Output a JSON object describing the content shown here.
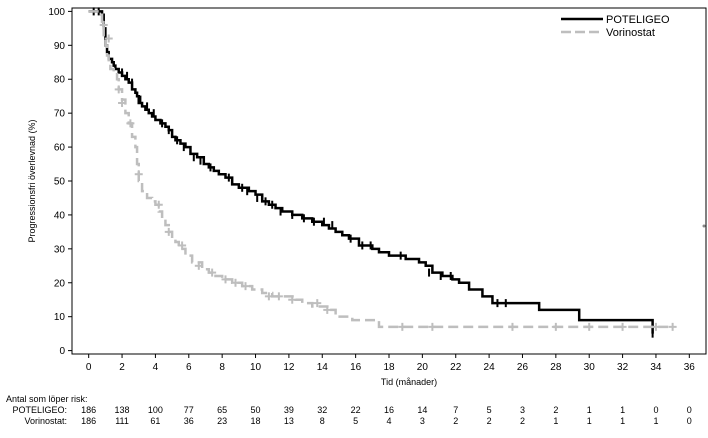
{
  "chart_data": {
    "type": "line",
    "xlabel": "Tid (månader)",
    "ylabel": "Progressionsfri överlevnad (%)",
    "xlim": [
      -1,
      37
    ],
    "ylim": [
      -1,
      101
    ],
    "x_ticks": [
      0,
      2,
      4,
      6,
      8,
      10,
      12,
      14,
      16,
      18,
      20,
      22,
      24,
      26,
      28,
      30,
      32,
      34,
      36
    ],
    "y_ticks": [
      0,
      10,
      20,
      30,
      40,
      50,
      60,
      70,
      80,
      90,
      100
    ],
    "legend_position": "top-right",
    "grid": false,
    "series": [
      {
        "name": "POTELIGEO",
        "color": "#000000",
        "dash": "solid",
        "x": [
          0,
          0.8,
          0.9,
          1.0,
          1.1,
          1.2,
          1.4,
          1.5,
          1.6,
          1.8,
          2.0,
          2.2,
          2.4,
          2.6,
          2.8,
          2.9,
          3.0,
          3.2,
          3.4,
          3.6,
          3.8,
          4.0,
          4.3,
          4.6,
          4.8,
          5.0,
          5.2,
          5.5,
          5.8,
          6.1,
          6.5,
          6.9,
          7.2,
          7.5,
          7.8,
          8.2,
          8.6,
          9.0,
          9.6,
          10.0,
          10.4,
          10.8,
          11.2,
          11.6,
          12.2,
          12.8,
          13.4,
          14.0,
          14.4,
          14.8,
          15.2,
          15.6,
          16.2,
          17.0,
          17.4,
          18.0,
          19.0,
          19.8,
          20.2,
          20.6,
          21.2,
          21.8,
          22.2,
          22.8,
          23.6,
          24.2,
          25.0,
          27.0,
          29.4,
          33.8
        ],
        "y": [
          100,
          99,
          95,
          90,
          88,
          86,
          85,
          84,
          83,
          82,
          81,
          80,
          79,
          77,
          76,
          75,
          73,
          72,
          71,
          70,
          69,
          68,
          67,
          66,
          65,
          63,
          62,
          61,
          60,
          58,
          57,
          55,
          54,
          53,
          52,
          51,
          49,
          48,
          47,
          46,
          44,
          43,
          42,
          41,
          40,
          39,
          38,
          37,
          36,
          35,
          34,
          33,
          31,
          30,
          29,
          28,
          27,
          26,
          25,
          23,
          22,
          21,
          20,
          18,
          16,
          14,
          14,
          12,
          9,
          5
        ],
        "censor_x": [
          0.3,
          0.6,
          2.0,
          2.3,
          2.6,
          3.1,
          3.5,
          3.9,
          4.4,
          4.8,
          5.3,
          5.7,
          6.3,
          6.7,
          7.3,
          8.4,
          9.2,
          9.5,
          10.1,
          10.6,
          11.0,
          11.5,
          12.2,
          12.9,
          13.5,
          14.1,
          14.6,
          15.7,
          16.4,
          16.9,
          18.7,
          20.4,
          21.1,
          21.7,
          24.5,
          25.0,
          33.8
        ],
        "censor_y": [
          100,
          100,
          82,
          81,
          79,
          74,
          72,
          70,
          67,
          65,
          62,
          60,
          57,
          56,
          54,
          51,
          48,
          47,
          45,
          44,
          43,
          41,
          40,
          39,
          38,
          38,
          37,
          33,
          31,
          31,
          28,
          23,
          22,
          22,
          14,
          14,
          5
        ]
      },
      {
        "name": "Vorinostat",
        "color": "#bebebe",
        "dash": "dashed",
        "x": [
          0,
          0.6,
          0.8,
          0.9,
          1.0,
          1.1,
          1.2,
          1.3,
          1.5,
          1.7,
          1.8,
          2.0,
          2.2,
          2.4,
          2.6,
          2.8,
          2.9,
          3.0,
          3.2,
          3.5,
          3.8,
          4.0,
          4.2,
          4.4,
          4.6,
          4.8,
          5.0,
          5.2,
          5.4,
          5.8,
          6.2,
          6.8,
          7.2,
          7.6,
          8.0,
          8.6,
          9.2,
          9.8,
          10.4,
          11.0,
          12.4,
          12.8,
          13.4,
          14.4,
          14.8,
          15.8,
          17.4,
          35.0
        ],
        "y": [
          100,
          99,
          97,
          93,
          90,
          87,
          85,
          83,
          82,
          80,
          77,
          74,
          70,
          67,
          63,
          60,
          55,
          50,
          47,
          45,
          44,
          43,
          41,
          39,
          37,
          35,
          33,
          32,
          30,
          28,
          26,
          24,
          23,
          22,
          21,
          20,
          19,
          18,
          17,
          16,
          15,
          14,
          13,
          12,
          10,
          9,
          7,
          7
        ],
        "censor_x": [
          0.9,
          1.2,
          1.8,
          2.0,
          2.5,
          3.0,
          4.2,
          4.8,
          5.6,
          6.6,
          7.4,
          8.2,
          8.8,
          9.4,
          10.8,
          11.4,
          12.2,
          13.7,
          14.3,
          18.8,
          20.6,
          25.4,
          28.0,
          30.0,
          32.0,
          34.0,
          35.0
        ],
        "censor_y": [
          96,
          92,
          77,
          73,
          67,
          52,
          43,
          35,
          31,
          25,
          23,
          21,
          20,
          19,
          16,
          16,
          15,
          14,
          12,
          7,
          7,
          7,
          7,
          7,
          7,
          7,
          7
        ]
      }
    ]
  },
  "risk_table": {
    "header": "Antal som löper risk:",
    "rows": [
      {
        "label": "POTELIGEO:",
        "values": [
          "186",
          "138",
          "100",
          "77",
          "65",
          "50",
          "39",
          "32",
          "22",
          "16",
          "14",
          "7",
          "5",
          "3",
          "2",
          "1",
          "1",
          "0",
          "0"
        ]
      },
      {
        "label": "Vorinostat:",
        "values": [
          "186",
          "111",
          "61",
          "36",
          "23",
          "18",
          "13",
          "8",
          "5",
          "4",
          "3",
          "2",
          "2",
          "2",
          "1",
          "1",
          "1",
          "1",
          "0"
        ]
      }
    ]
  }
}
